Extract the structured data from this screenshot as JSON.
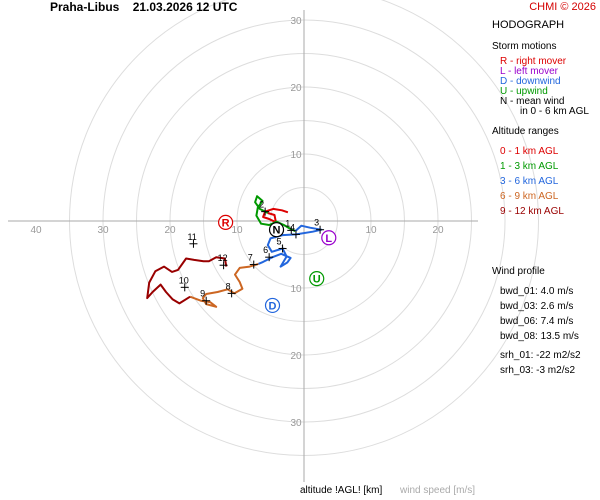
{
  "header": {
    "station": "Praha-Libus",
    "datetime": "21.03.2026 12 UTC",
    "copyright": "CHMI © 2026"
  },
  "panel": {
    "title": "HODOGRAPH",
    "storm_motions_title": "Storm motions",
    "storm_motions": [
      {
        "label": "R - right mover",
        "color": "#dd0000"
      },
      {
        "label": "L - left mover",
        "color": "#9900cc"
      },
      {
        "label": "D - downwind",
        "color": "#2266dd"
      },
      {
        "label": "U - upwind",
        "color": "#009900"
      },
      {
        "label": "N - mean wind",
        "color": "#000000"
      },
      {
        "label": "in 0 - 6 km AGL",
        "color": "#000000"
      }
    ],
    "altitude_title": "Altitude ranges",
    "altitude_ranges": [
      {
        "label": "0 - 1 km AGL",
        "color": "#dd0000"
      },
      {
        "label": "1 - 3 km AGL",
        "color": "#009900"
      },
      {
        "label": "3 - 6 km AGL",
        "color": "#2266dd"
      },
      {
        "label": "6 - 9 km AGL",
        "color": "#cc6622"
      },
      {
        "label": "9 - 12 km AGL",
        "color": "#990000"
      }
    ],
    "wind_profile_title": "Wind profile",
    "wind_profile": [
      "bwd_01: 4.0 m/s",
      "bwd_03: 2.6 m/s",
      "bwd_06: 7.4 m/s",
      "bwd_08: 13.5 m/s",
      "srh_01: -22 m2/s2",
      "srh_03: -3 m2/s2"
    ]
  },
  "footer": {
    "altitude_label": "altitude !AGL! [km]",
    "speed_label": "wind speed [m/s]"
  },
  "chart_data": {
    "type": "line",
    "rings": [
      5,
      10,
      15,
      20,
      25,
      30,
      35
    ],
    "x_ticks": [
      -40,
      -30,
      -20,
      -10,
      10,
      20
    ],
    "y_ticks": [
      30,
      20,
      10,
      -10,
      -20,
      -30
    ],
    "tick_labels": {
      "x": [
        "40",
        "30",
        "20",
        "10",
        "10",
        "20"
      ],
      "y": [
        "30",
        "20",
        "10",
        "10",
        "20",
        "30"
      ]
    },
    "series": [
      {
        "color": "#dd0000",
        "points": [
          [
            -2.4,
            1.3
          ],
          [
            -3.3,
            1.6
          ],
          [
            -4.6,
            1.8
          ],
          [
            -5.8,
            1.4
          ],
          [
            -6.1,
            0.6
          ],
          [
            -5.2,
            0.3
          ],
          [
            -4.2,
            -0.2
          ],
          [
            -4.4,
            0.9
          ],
          [
            -5.4,
            1.2
          ]
        ]
      },
      {
        "color": "#009900",
        "points": [
          [
            -5.4,
            1.2
          ],
          [
            -6.6,
            1.8
          ],
          [
            -7.3,
            2.8
          ],
          [
            -7.0,
            3.7
          ],
          [
            -6.2,
            3.0
          ],
          [
            -6.9,
            2.0
          ],
          [
            -7.1,
            0.8
          ],
          [
            -6.4,
            -0.4
          ],
          [
            -5.2,
            -0.6
          ],
          [
            -4.1,
            -0.1
          ],
          [
            -3.0,
            -0.6
          ],
          [
            -2.0,
            -1.2
          ],
          [
            -1.3,
            -1.5
          ]
        ]
      },
      {
        "color": "#2266dd",
        "points": [
          [
            -1.3,
            -1.5
          ],
          [
            -0.4,
            -0.7
          ],
          [
            0.9,
            -1.0
          ],
          [
            2.6,
            -1.3
          ],
          [
            1.3,
            -1.6
          ],
          [
            -1.2,
            -2.0
          ],
          [
            -3.2,
            -2.1
          ],
          [
            -5.0,
            -2.6
          ],
          [
            -5.4,
            -3.6
          ],
          [
            -4.8,
            -4.6
          ],
          [
            -3.2,
            -4.1
          ],
          [
            -2.6,
            -5.3
          ],
          [
            -3.5,
            -6.8
          ],
          [
            -2.5,
            -6.2
          ],
          [
            -2.0,
            -5.5
          ],
          [
            -3.4,
            -4.9
          ],
          [
            -4.7,
            -5.4
          ],
          [
            -6.1,
            -6.1
          ],
          [
            -6.8,
            -6.4
          ]
        ]
      },
      {
        "color": "#cc6622",
        "points": [
          [
            -6.8,
            -6.4
          ],
          [
            -8.1,
            -6.8
          ],
          [
            -9.6,
            -7.0
          ],
          [
            -10.3,
            -8.0
          ],
          [
            -9.6,
            -9.1
          ],
          [
            -9.2,
            -10.1
          ],
          [
            -10.4,
            -10.8
          ],
          [
            -11.4,
            -10.2
          ],
          [
            -12.9,
            -10.6
          ],
          [
            -14.6,
            -10.9
          ],
          [
            -15.1,
            -11.5
          ],
          [
            -14.6,
            -12.4
          ],
          [
            -13.1,
            -12.8
          ],
          [
            -14.0,
            -12.1
          ],
          [
            -15.4,
            -11.9
          ],
          [
            -17.0,
            -11.3
          ]
        ]
      },
      {
        "color": "#990000",
        "points": [
          [
            -17.0,
            -11.3
          ],
          [
            -18.6,
            -12.3
          ],
          [
            -19.6,
            -11.7
          ],
          [
            -20.6,
            -10.6
          ],
          [
            -21.4,
            -9.5
          ],
          [
            -22.6,
            -10.6
          ],
          [
            -23.4,
            -11.5
          ],
          [
            -23.1,
            -9.2
          ],
          [
            -22.2,
            -7.5
          ],
          [
            -20.9,
            -6.8
          ],
          [
            -19.7,
            -7.6
          ],
          [
            -18.8,
            -7.3
          ],
          [
            -17.6,
            -5.6
          ],
          [
            -16.4,
            -5.8
          ],
          [
            -15.0,
            -6.0
          ],
          [
            -14.2,
            -6.0
          ],
          [
            -13.1,
            -5.4
          ],
          [
            -11.8,
            -5.6
          ],
          [
            -11.6,
            -6.8
          ]
        ]
      }
    ],
    "height_markers": [
      {
        "label": "1",
        "x": -1.9,
        "y": -1.4
      },
      {
        "label": "2",
        "x": -5.8,
        "y": 1.4
      },
      {
        "label": "3",
        "x": 2.4,
        "y": -1.3
      },
      {
        "label": "4",
        "x": -1.2,
        "y": -2.0
      },
      {
        "label": "5",
        "x": -3.2,
        "y": -4.1
      },
      {
        "label": "6",
        "x": -5.2,
        "y": -5.4
      },
      {
        "label": "7",
        "x": -7.5,
        "y": -6.5
      },
      {
        "label": "8",
        "x": -10.8,
        "y": -10.8
      },
      {
        "label": "9",
        "x": -14.6,
        "y": -11.9
      },
      {
        "label": "10",
        "x": -17.8,
        "y": -9.9
      },
      {
        "label": "11",
        "x": -16.5,
        "y": -3.4
      },
      {
        "label": "12",
        "x": -12.0,
        "y": -6.6
      }
    ],
    "storm_markers": [
      {
        "label": "R",
        "x": -11.7,
        "y": -0.2,
        "color": "#dd0000"
      },
      {
        "label": "L",
        "x": 3.7,
        "y": -2.5,
        "color": "#9900cc"
      },
      {
        "label": "D",
        "x": -4.7,
        "y": -12.6,
        "color": "#2266dd"
      },
      {
        "label": "U",
        "x": 1.9,
        "y": -8.6,
        "color": "#009900"
      },
      {
        "label": "N",
        "x": -4.1,
        "y": -1.3,
        "color": "#000000"
      }
    ]
  }
}
